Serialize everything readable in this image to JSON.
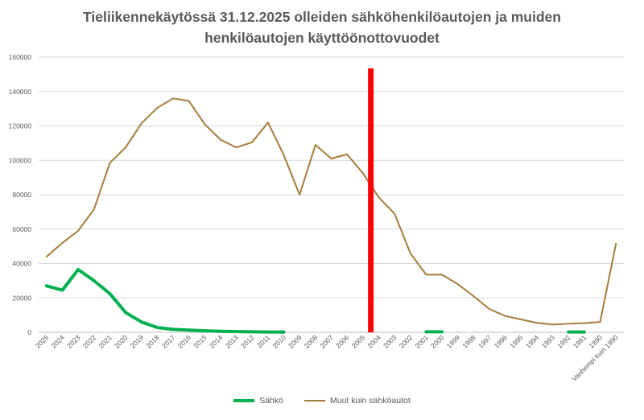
{
  "chart_data": {
    "type": "line",
    "title_line1": "Tieliikennekäytössä 31.12.2025 olleiden sähköhenkilöautojen ja muiden",
    "title_line2": "henkilöautojen käyttöönottovuodet",
    "categories": [
      "2025",
      "2024",
      "2023",
      "2022",
      "2021",
      "2020",
      "2019",
      "2018",
      "2017",
      "2016",
      "2015",
      "2014",
      "2013",
      "2012",
      "2011",
      "2010",
      "2009",
      "2008",
      "2007",
      "2006",
      "2005",
      "2004",
      "2003",
      "2002",
      "2001",
      "2000",
      "1999",
      "1998",
      "1997",
      "1996",
      "1995",
      "1994",
      "1993",
      "1992",
      "1991",
      "1990",
      "Vanhempi kuin 1990"
    ],
    "ylim": [
      0,
      160000
    ],
    "yticks": [
      "0",
      "20000",
      "40000",
      "60000",
      "80000",
      "100000",
      "120000",
      "140000",
      "160000"
    ],
    "grid": true,
    "legend_position": "bottom",
    "marker_category": "2004",
    "series": [
      {
        "name": "Sähkö",
        "color": "#00b050",
        "values": [
          27000,
          24500,
          36500,
          30000,
          22500,
          11500,
          6000,
          2800,
          1700,
          1300,
          900,
          600,
          400,
          300,
          200,
          100,
          null,
          null,
          null,
          null,
          null,
          null,
          null,
          null,
          300,
          300,
          null,
          null,
          null,
          null,
          null,
          null,
          null,
          200,
          200,
          null,
          null
        ]
      },
      {
        "name": "Muut kuin sähköautot",
        "color": "#a67c3c",
        "values": [
          44000,
          52000,
          59000,
          71500,
          98500,
          107500,
          121500,
          130500,
          136000,
          134500,
          121000,
          112000,
          107500,
          110500,
          122000,
          103000,
          80000,
          109000,
          101000,
          103500,
          92500,
          78500,
          69000,
          46000,
          33500,
          33500,
          28000,
          21000,
          13500,
          9500,
          7500,
          5500,
          4500,
          5000,
          5300,
          6000,
          51500
        ]
      }
    ]
  },
  "colors": {
    "marker": "#ff0000",
    "grid": "#d9d9d9",
    "axis": "#bfbfbf"
  }
}
